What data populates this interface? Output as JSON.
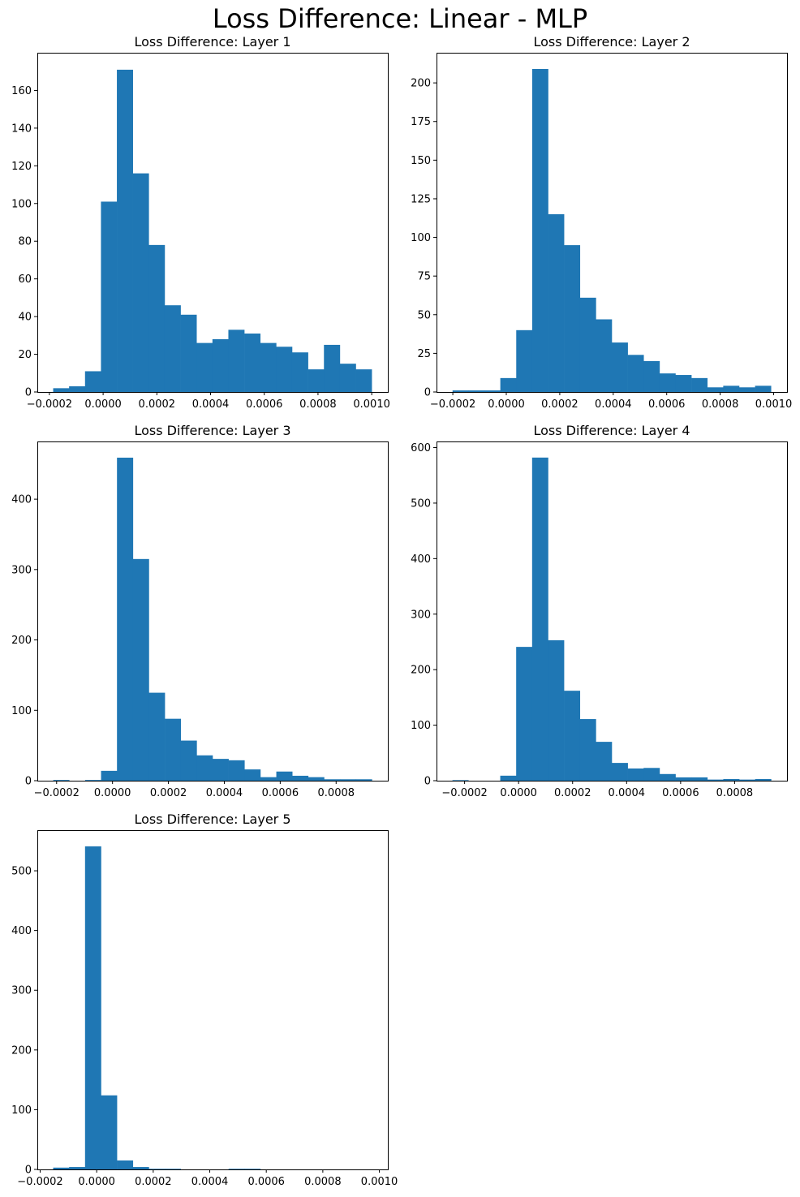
{
  "figure": {
    "suptitle": "Loss Difference: Linear - MLP",
    "bar_color": "#1f77b4"
  },
  "chart_data": [
    {
      "type": "bar",
      "subtype": "histogram",
      "title": "Loss Difference: Layer 1",
      "xlabel": "",
      "ylabel": "",
      "bin_range": [
        -0.000186,
        0.001
      ],
      "values": [
        2,
        3,
        11,
        101,
        171,
        116,
        78,
        46,
        41,
        26,
        28,
        33,
        31,
        26,
        24,
        21,
        12,
        25,
        15,
        12
      ],
      "xlim": [
        -0.000245,
        0.00106
      ],
      "ylim": [
        0,
        180
      ],
      "xticks": [
        -0.0002,
        0.0,
        0.0002,
        0.0004,
        0.0006,
        0.0008,
        0.001
      ],
      "xtick_labels": [
        "−0.0002",
        "0.0000",
        "0.0002",
        "0.0004",
        "0.0006",
        "0.0008",
        "0.0010"
      ],
      "yticks": [
        0,
        20,
        40,
        60,
        80,
        100,
        120,
        140,
        160
      ],
      "ytick_labels": [
        "0",
        "20",
        "40",
        "60",
        "80",
        "100",
        "120",
        "140",
        "160"
      ],
      "grid": false,
      "legend": "none"
    },
    {
      "type": "bar",
      "subtype": "histogram",
      "title": "Loss Difference: Layer 2",
      "xlabel": "",
      "ylabel": "",
      "bin_range": [
        -0.000201,
        0.00099
      ],
      "values": [
        1,
        1,
        1,
        9,
        40,
        209,
        115,
        95,
        61,
        47,
        32,
        24,
        20,
        12,
        11,
        9,
        3,
        4,
        3,
        4
      ],
      "xlim": [
        -0.000261,
        0.00105
      ],
      "ylim": [
        0,
        219.5
      ],
      "xticks": [
        -0.0002,
        0.0,
        0.0002,
        0.0004,
        0.0006,
        0.0008,
        0.001
      ],
      "xtick_labels": [
        "−0.0002",
        "0.0000",
        "0.0002",
        "0.0004",
        "0.0006",
        "0.0008",
        "0.0010"
      ],
      "yticks": [
        0,
        25,
        50,
        75,
        100,
        125,
        150,
        175,
        200
      ],
      "ytick_labels": [
        "0",
        "25",
        "50",
        "75",
        "100",
        "125",
        "150",
        "175",
        "200"
      ],
      "grid": false,
      "legend": "none"
    },
    {
      "type": "bar",
      "subtype": "histogram",
      "title": "Loss Difference: Layer 3",
      "xlabel": "",
      "ylabel": "",
      "bin_range": [
        -0.000212,
        0.000928
      ],
      "values": [
        1,
        0,
        1,
        14,
        459,
        315,
        125,
        88,
        57,
        36,
        31,
        29,
        16,
        5,
        13,
        7,
        5,
        2,
        2,
        2
      ],
      "xlim": [
        -0.000269,
        0.000985
      ],
      "ylim": [
        0,
        482
      ],
      "xticks": [
        -0.0002,
        0.0,
        0.0002,
        0.0004,
        0.0006,
        0.0008
      ],
      "xtick_labels": [
        "−0.0002",
        "0.0000",
        "0.0002",
        "0.0004",
        "0.0006",
        "0.0008"
      ],
      "yticks": [
        0,
        100,
        200,
        300,
        400
      ],
      "ytick_labels": [
        "0",
        "100",
        "200",
        "300",
        "400"
      ],
      "grid": false,
      "legend": "none"
    },
    {
      "type": "bar",
      "subtype": "histogram",
      "title": "Loss Difference: Layer 4",
      "xlabel": "",
      "ylabel": "",
      "bin_range": [
        -0.000245,
        0.000935
      ],
      "values": [
        1,
        0,
        0,
        9,
        241,
        582,
        253,
        162,
        111,
        70,
        32,
        22,
        23,
        12,
        6,
        6,
        2,
        3,
        2,
        3
      ],
      "xlim": [
        -0.000304,
        0.000994
      ],
      "ylim": [
        0,
        611
      ],
      "xticks": [
        -0.0002,
        0.0,
        0.0002,
        0.0004,
        0.0006,
        0.0008
      ],
      "xtick_labels": [
        "−0.0002",
        "0.0000",
        "0.0002",
        "0.0004",
        "0.0006",
        "0.0008"
      ],
      "yticks": [
        0,
        100,
        200,
        300,
        400,
        500,
        600
      ],
      "ytick_labels": [
        "0",
        "100",
        "200",
        "300",
        "400",
        "500",
        "600"
      ],
      "grid": false,
      "legend": "none"
    },
    {
      "type": "bar",
      "subtype": "histogram",
      "title": "Loss Difference: Layer 5",
      "xlabel": "",
      "ylabel": "",
      "bin_range": [
        -0.000154,
        0.000974
      ],
      "values": [
        3,
        4,
        541,
        124,
        15,
        4,
        1,
        1,
        0,
        0,
        0,
        1,
        1,
        0,
        0,
        0,
        0,
        0,
        0,
        0
      ],
      "xlim": [
        -0.00021,
        0.00103
      ],
      "ylim": [
        0,
        568
      ],
      "xticks": [
        -0.0002,
        0.0,
        0.0002,
        0.0004,
        0.0006,
        0.0008,
        0.001
      ],
      "xtick_labels": [
        "−0.0002",
        "0.0000",
        "0.0002",
        "0.0004",
        "0.0006",
        "0.0008",
        "0.0010"
      ],
      "yticks": [
        0,
        100,
        200,
        300,
        400,
        500
      ],
      "ytick_labels": [
        "0",
        "100",
        "200",
        "300",
        "400",
        "500"
      ],
      "grid": false,
      "legend": "none"
    }
  ]
}
